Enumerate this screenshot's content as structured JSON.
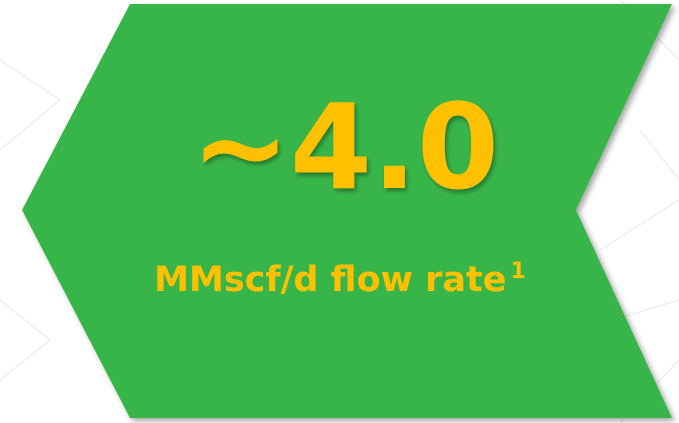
{
  "headline": "~4.0",
  "caption": "MMscf/d flow rate",
  "footnote_marker": "1"
}
